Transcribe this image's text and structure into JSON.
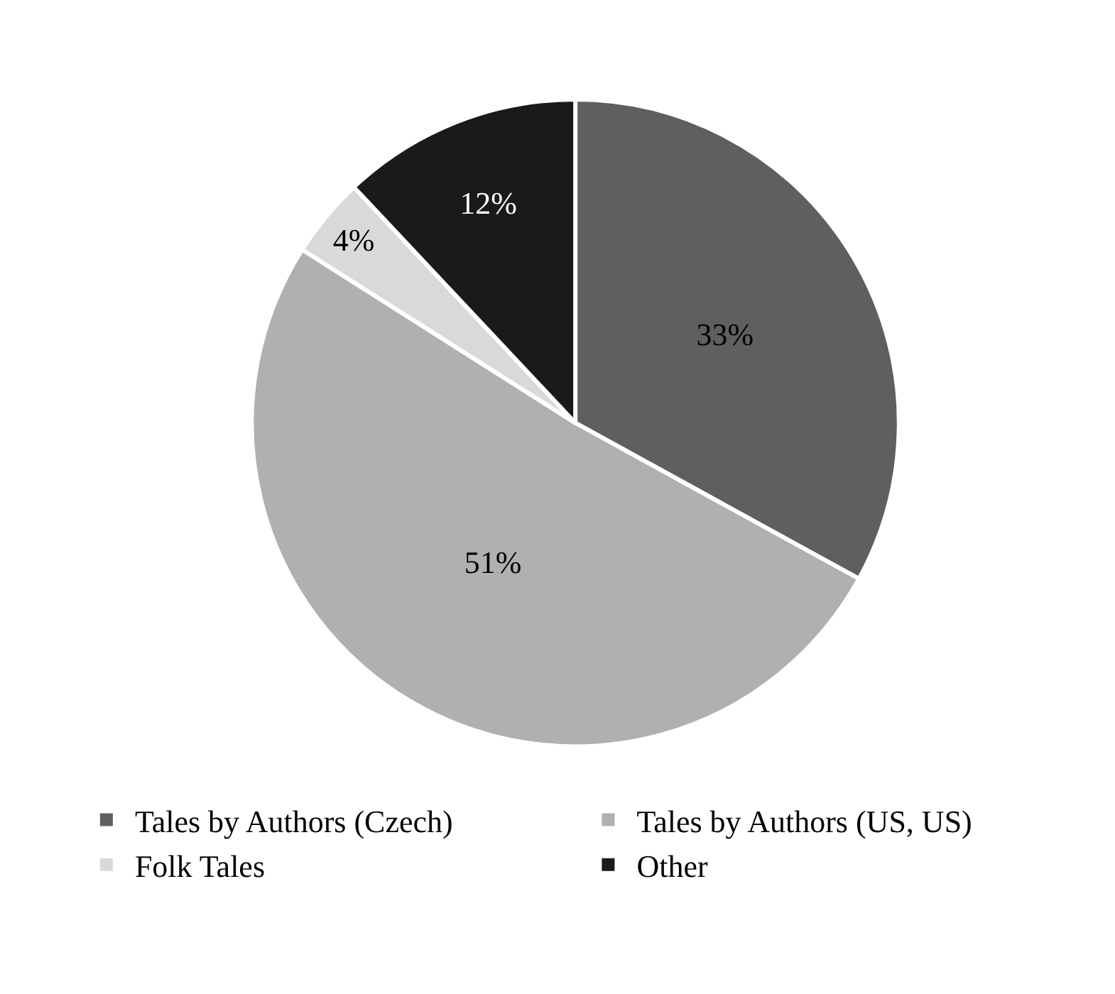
{
  "chart_data": {
    "type": "pie",
    "categories": [
      "Tales by Authors (Czech)",
      "Tales by Authors (US, US)",
      "Folk Tales",
      "Other"
    ],
    "values": [
      33,
      51,
      4,
      12
    ],
    "value_labels": [
      "33%",
      "51%",
      "4%",
      "12%"
    ],
    "colors": [
      "#5f5f5f",
      "#b0b0b0",
      "#d9d9d9",
      "#1a1a1a"
    ],
    "legend": "bottom"
  }
}
